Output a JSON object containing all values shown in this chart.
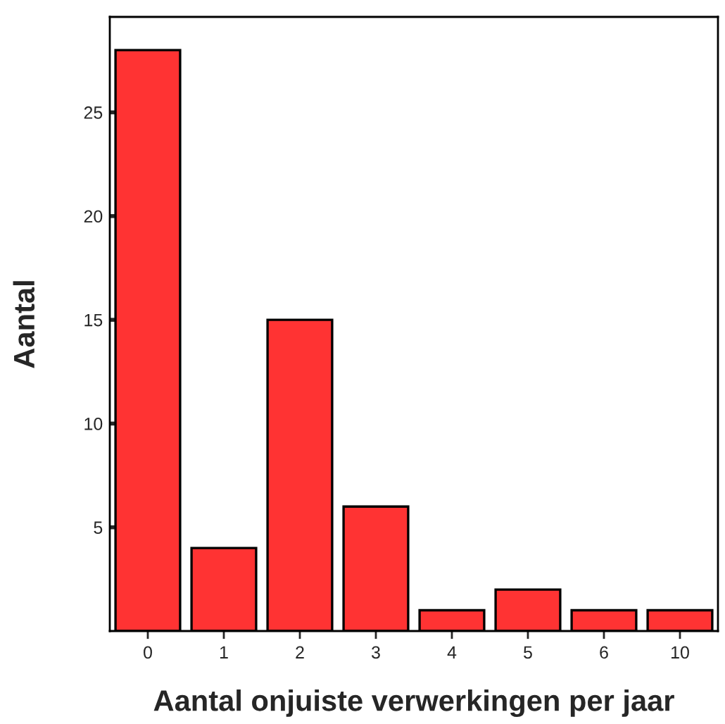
{
  "chart_data": {
    "type": "bar",
    "xlabel": "Aantal onjuiste verwerkingen per jaar",
    "ylabel": "Aantal",
    "categories": [
      "0",
      "1",
      "2",
      "3",
      "4",
      "5",
      "6",
      "10"
    ],
    "values": [
      28,
      4,
      15,
      6,
      1,
      2,
      1,
      1
    ],
    "color": "#ff3333",
    "ylim": [
      0,
      29.6
    ],
    "yticks": [
      5,
      10,
      15,
      20,
      25
    ],
    "grid": false
  }
}
